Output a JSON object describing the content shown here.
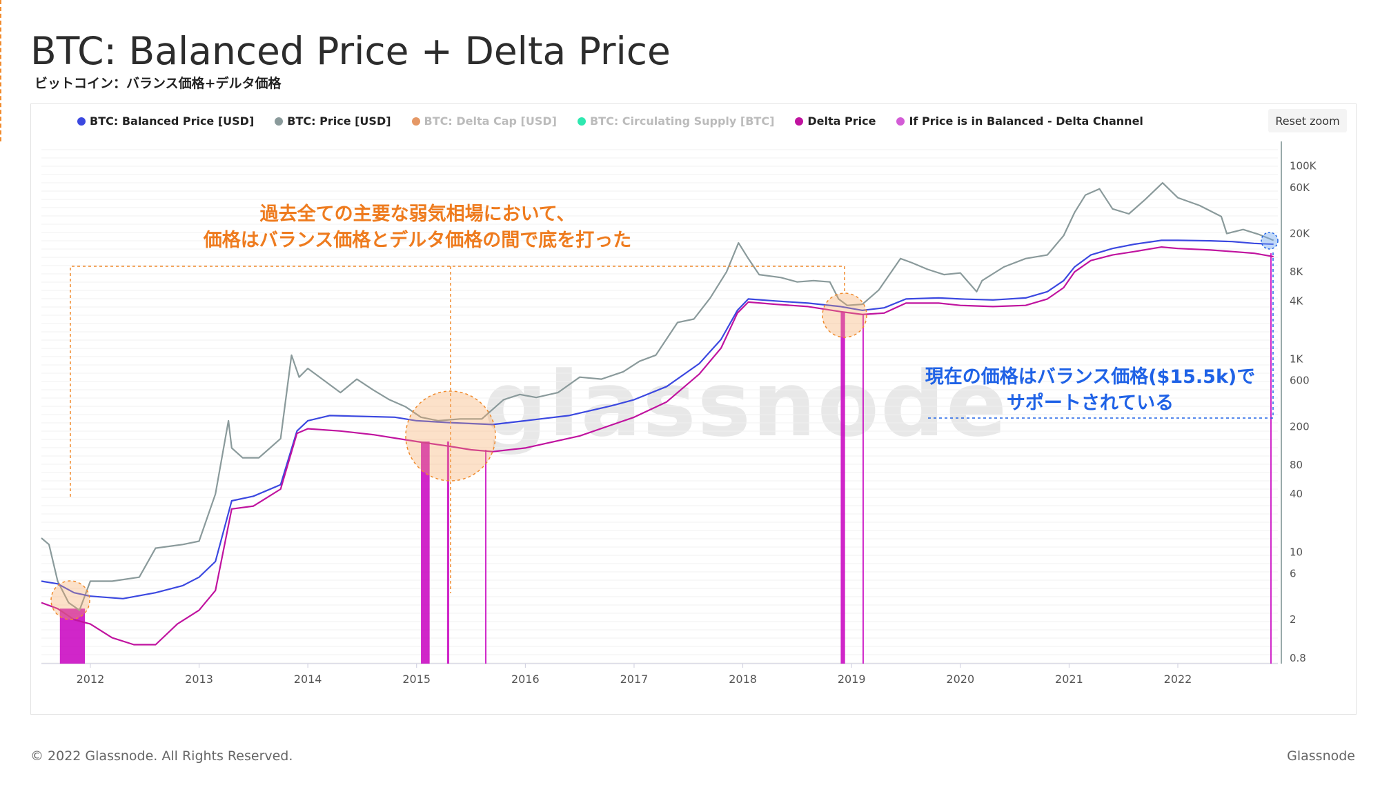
{
  "header": {
    "title": "BTC: Balanced Price + Delta Price",
    "subtitle": "ビットコイン：バランス価格+デルタ価格"
  },
  "controls": {
    "reset_zoom": "Reset zoom"
  },
  "legend": [
    {
      "label": "BTC: Balanced Price [USD]",
      "color": "#3b48e0",
      "active": true
    },
    {
      "label": "BTC: Price [USD]",
      "color": "#8a9a9b",
      "active": true
    },
    {
      "label": "BTC: Delta Cap [USD]",
      "color": "#e59866",
      "active": false
    },
    {
      "label": "BTC: Circulating Supply [BTC]",
      "color": "#2ee8b0",
      "active": false
    },
    {
      "label": "Delta Price",
      "color": "#c0139f",
      "active": true
    },
    {
      "label": "If Price is in Balanced - Delta Channel",
      "color": "#d35cd6",
      "active": true
    }
  ],
  "annotations": {
    "orange_line1": "過去全ての主要な弱気相場において、",
    "orange_line2": "価格はバランス価格とデルタ価格の間で底を打った",
    "blue_line1": "現在の価格はバランス価格($15.5k)で",
    "blue_line2": "サポートされている"
  },
  "watermark": "glassnode",
  "footer": {
    "copyright": "© 2022 Glassnode. All Rights Reserved.",
    "brand": "Glassnode"
  },
  "colors": {
    "price": "#8a9a9b",
    "balanced": "#3b48e0",
    "delta": "#c0139f",
    "channel": "#c800c0",
    "accent_orange": "#f08a2c",
    "accent_blue": "#1f62e6"
  },
  "chart_data": {
    "type": "line",
    "y_scale": "log",
    "xlim": [
      2011.55,
      2022.92
    ],
    "ylim": [
      0.7,
      180000
    ],
    "x_ticks": [
      "2012",
      "2013",
      "2014",
      "2015",
      "2016",
      "2017",
      "2018",
      "2019",
      "2020",
      "2021",
      "2022"
    ],
    "y_ticks": [
      "100K",
      "60K",
      "20K",
      "8K",
      "4K",
      "1K",
      "600",
      "200",
      "80",
      "40",
      "10",
      "6",
      "2",
      "0.8"
    ],
    "grid": "horizontal",
    "legend_position": "top-left",
    "series": [
      {
        "name": "BTC: Price [USD]",
        "x": [
          2011.55,
          2011.62,
          2011.7,
          2011.8,
          2011.9,
          2012.0,
          2012.2,
          2012.45,
          2012.6,
          2012.85,
          2013.0,
          2013.15,
          2013.27,
          2013.3,
          2013.4,
          2013.55,
          2013.75,
          2013.85,
          2013.92,
          2014.0,
          2014.15,
          2014.3,
          2014.45,
          2014.6,
          2014.75,
          2014.9,
          2015.04,
          2015.2,
          2015.4,
          2015.6,
          2015.8,
          2015.95,
          2016.1,
          2016.3,
          2016.5,
          2016.7,
          2016.9,
          2017.05,
          2017.2,
          2017.4,
          2017.55,
          2017.7,
          2017.85,
          2017.96,
          2018.05,
          2018.15,
          2018.35,
          2018.5,
          2018.65,
          2018.8,
          2018.88,
          2018.96,
          2019.1,
          2019.25,
          2019.45,
          2019.55,
          2019.7,
          2019.85,
          2020.0,
          2020.15,
          2020.2,
          2020.4,
          2020.6,
          2020.8,
          2020.95,
          2021.05,
          2021.15,
          2021.28,
          2021.4,
          2021.55,
          2021.7,
          2021.86,
          2022.0,
          2022.2,
          2022.4,
          2022.45,
          2022.6,
          2022.75,
          2022.88
        ],
        "y": [
          14,
          12,
          5,
          3,
          2.5,
          5,
          5,
          5.5,
          11,
          12,
          13,
          40,
          230,
          120,
          95,
          95,
          150,
          1100,
          650,
          800,
          600,
          450,
          620,
          480,
          380,
          320,
          250,
          230,
          240,
          240,
          380,
          430,
          400,
          450,
          650,
          620,
          740,
          950,
          1100,
          2400,
          2600,
          4300,
          8000,
          16000,
          11000,
          7500,
          7000,
          6300,
          6500,
          6300,
          4200,
          3600,
          3700,
          5200,
          11000,
          10000,
          8500,
          7500,
          7800,
          5000,
          6500,
          9000,
          11000,
          12000,
          19000,
          33000,
          50000,
          58000,
          36000,
          32000,
          45000,
          67000,
          47000,
          39000,
          30000,
          20000,
          22000,
          19500,
          17000
        ]
      },
      {
        "name": "BTC: Balanced Price [USD]",
        "x": [
          2011.55,
          2011.7,
          2011.85,
          2012.0,
          2012.3,
          2012.6,
          2012.85,
          2013.0,
          2013.15,
          2013.3,
          2013.5,
          2013.75,
          2013.9,
          2014.0,
          2014.2,
          2014.5,
          2014.8,
          2015.0,
          2015.3,
          2015.7,
          2016.0,
          2016.4,
          2016.8,
          2017.0,
          2017.3,
          2017.6,
          2017.8,
          2017.95,
          2018.05,
          2018.3,
          2018.6,
          2018.9,
          2019.1,
          2019.3,
          2019.5,
          2019.8,
          2020.0,
          2020.3,
          2020.6,
          2020.8,
          2020.95,
          2021.05,
          2021.2,
          2021.4,
          2021.6,
          2021.85,
          2022.0,
          2022.3,
          2022.5,
          2022.7,
          2022.88
        ],
        "y": [
          5,
          4.7,
          3.8,
          3.5,
          3.3,
          3.8,
          4.5,
          5.5,
          8,
          34,
          38,
          50,
          180,
          230,
          260,
          255,
          250,
          230,
          220,
          210,
          230,
          260,
          330,
          380,
          520,
          900,
          1600,
          3200,
          4200,
          4000,
          3800,
          3500,
          3200,
          3400,
          4200,
          4300,
          4200,
          4100,
          4300,
          5000,
          6500,
          9000,
          12000,
          14000,
          15500,
          17000,
          17000,
          16800,
          16500,
          15800,
          15500
        ]
      },
      {
        "name": "Delta Price",
        "x": [
          2011.55,
          2011.7,
          2011.85,
          2012.0,
          2012.2,
          2012.4,
          2012.6,
          2012.8,
          2013.0,
          2013.15,
          2013.3,
          2013.5,
          2013.75,
          2013.9,
          2014.0,
          2014.3,
          2014.6,
          2015.0,
          2015.3,
          2015.5,
          2015.7,
          2016.0,
          2016.5,
          2017.0,
          2017.3,
          2017.6,
          2017.8,
          2017.95,
          2018.05,
          2018.3,
          2018.6,
          2018.9,
          2019.1,
          2019.3,
          2019.5,
          2019.8,
          2020.0,
          2020.3,
          2020.6,
          2020.8,
          2020.95,
          2021.05,
          2021.2,
          2021.4,
          2021.6,
          2021.85,
          2022.0,
          2022.3,
          2022.5,
          2022.7,
          2022.88
        ],
        "y": [
          3,
          2.6,
          2,
          1.8,
          1.3,
          1.1,
          1.1,
          1.8,
          2.5,
          4,
          28,
          30,
          45,
          170,
          190,
          180,
          165,
          140,
          125,
          115,
          110,
          120,
          160,
          250,
          360,
          700,
          1300,
          3000,
          3900,
          3700,
          3500,
          3100,
          2900,
          3000,
          3800,
          3800,
          3600,
          3500,
          3600,
          4200,
          5500,
          8000,
          10500,
          12000,
          13000,
          14500,
          14000,
          13500,
          13000,
          12500,
          11500
        ]
      }
    ],
    "channel_periods": [
      [
        2011.72,
        2011.95
      ],
      [
        2015.04,
        2015.12
      ],
      [
        2015.28,
        2015.3
      ],
      [
        2015.63,
        2015.64
      ],
      [
        2018.9,
        2018.94
      ],
      [
        2019.1,
        2019.11
      ],
      [
        2022.85,
        2022.86
      ]
    ]
  }
}
